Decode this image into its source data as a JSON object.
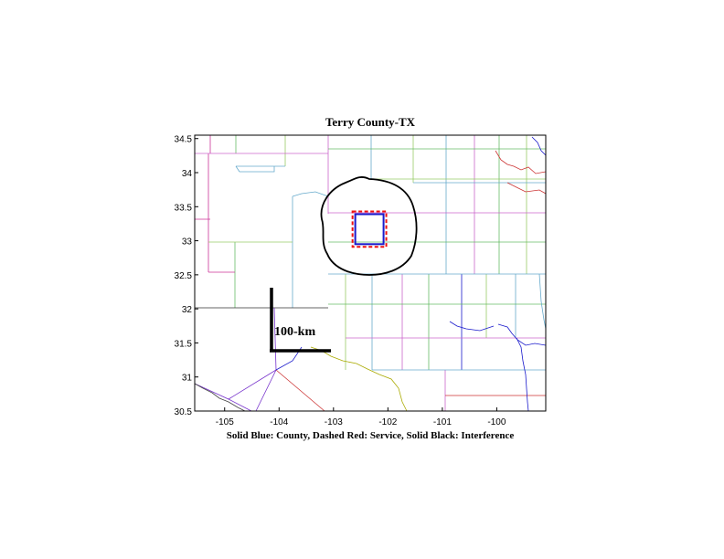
{
  "map": {
    "title": "Terry County-TX",
    "xlabel": "Solid Blue: County, Dashed Red: Service, Solid Black: Interference",
    "x_ticks": [
      "-105",
      "-104",
      "-103",
      "-102",
      "-101",
      "-100"
    ],
    "y_ticks": [
      "34.5",
      "34",
      "33.5",
      "33",
      "32.5",
      "32",
      "31.5",
      "31",
      "30.5"
    ],
    "xlim": [
      -105.55,
      -99.1
    ],
    "ylim": [
      30.5,
      34.55
    ],
    "scale_bar_label": "100-km",
    "colors": {
      "county": "#1a1acc",
      "service": "#ee1111",
      "interference": "#000000"
    },
    "county_box": {
      "lon": [
        -102.6,
        -102.08
      ],
      "lat": [
        32.95,
        33.39
      ]
    },
    "service_box": {
      "lon": [
        -102.65,
        -102.03
      ],
      "lat": [
        32.91,
        33.43
      ]
    }
  }
}
